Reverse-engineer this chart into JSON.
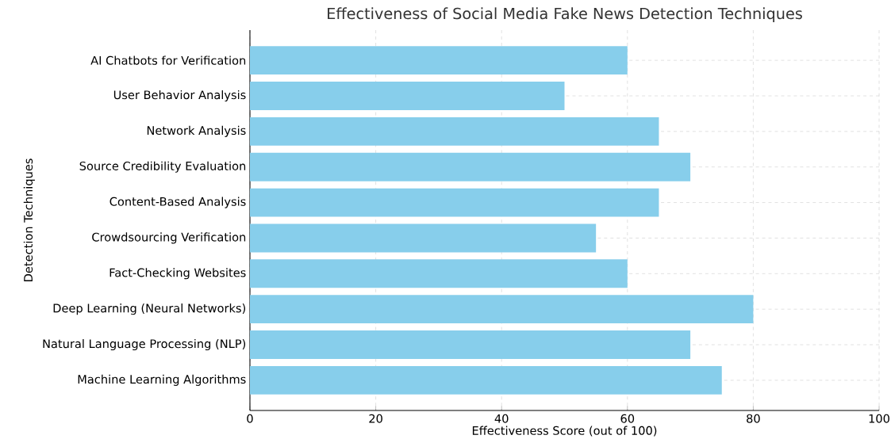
{
  "chart_data": {
    "type": "bar",
    "orientation": "horizontal",
    "title": "Effectiveness of Social Media Fake News Detection Techniques",
    "xlabel": "Effectiveness Score (out of 100)",
    "ylabel": "Detection Techniques",
    "categories": [
      "AI Chatbots for Verification",
      "User Behavior Analysis",
      "Network Analysis",
      "Source Credibility Evaluation",
      "Content-Based Analysis",
      "Crowdsourcing Verification",
      "Fact-Checking Websites",
      "Deep Learning (Neural Networks)",
      "Natural Language Processing (NLP)",
      "Machine Learning Algorithms"
    ],
    "values": [
      60,
      50,
      65,
      70,
      65,
      55,
      60,
      80,
      70,
      75
    ],
    "color": "#87ceeb",
    "xlim": [
      0,
      100
    ],
    "xticks": [
      0,
      20,
      40,
      60,
      80,
      100
    ],
    "grid": true
  }
}
